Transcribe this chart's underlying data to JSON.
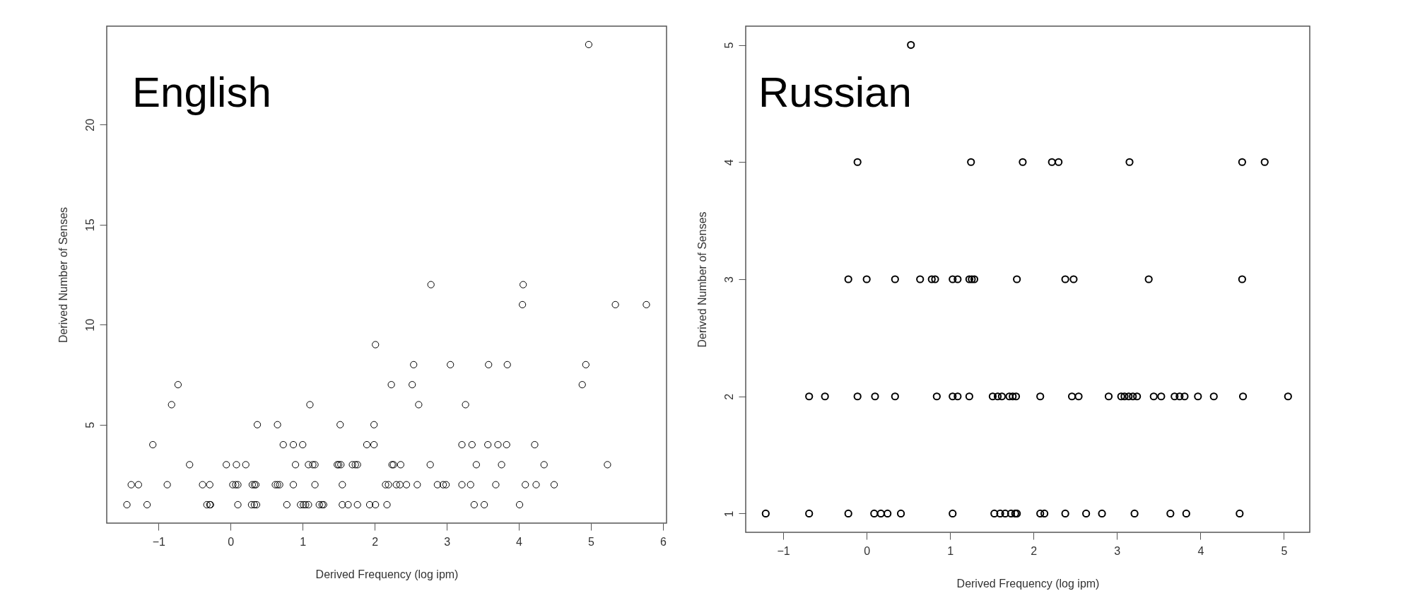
{
  "chart_data": [
    {
      "type": "scatter",
      "title": "English",
      "xlabel": "Derived Frequency (log ipm)",
      "ylabel": "Derived Number of Senses",
      "marker": "circle",
      "grid": false,
      "x": [
        -1.44,
        -1.16,
        -0.33,
        -0.29,
        -0.28,
        0.1,
        0.29,
        0.33,
        0.36,
        0.78,
        0.97,
        1.01,
        1.04,
        1.08,
        1.23,
        1.27,
        1.29,
        1.55,
        1.63,
        1.76,
        1.93,
        2.01,
        2.17,
        3.38,
        3.52,
        4.01,
        -1.38,
        -1.28,
        -0.88,
        -0.39,
        -0.29,
        0.03,
        0.07,
        0.1,
        0.3,
        0.33,
        0.35,
        0.62,
        0.65,
        0.68,
        0.87,
        1.17,
        1.55,
        2.15,
        2.19,
        2.3,
        2.35,
        2.44,
        2.59,
        2.87,
        2.95,
        2.99,
        3.21,
        3.33,
        3.68,
        4.09,
        4.24,
        4.49,
        -0.57,
        -0.06,
        0.08,
        0.21,
        0.9,
        1.08,
        1.14,
        1.17,
        1.48,
        1.5,
        1.53,
        1.69,
        1.73,
        1.76,
        2.24,
        2.26,
        2.36,
        2.77,
        3.41,
        3.76,
        4.35,
        5.23,
        -1.08,
        0.73,
        0.87,
        1.0,
        1.89,
        1.99,
        3.21,
        3.35,
        3.57,
        3.71,
        3.83,
        4.22,
        0.37,
        0.65,
        1.52,
        1.99,
        -0.82,
        1.1,
        2.61,
        3.26,
        -0.73,
        2.23,
        2.52,
        4.88,
        2.54,
        3.05,
        3.58,
        3.84,
        4.93,
        2.01,
        4.05,
        5.34,
        5.77,
        2.78,
        4.06,
        4.97
      ],
      "series": [
        {
          "color": "#000000",
          "values": [
            1,
            1,
            1,
            1,
            1,
            1,
            1,
            1,
            1,
            1,
            1,
            1,
            1,
            1,
            1,
            1,
            1,
            1,
            1,
            1,
            1,
            1,
            1,
            1,
            1,
            1,
            2,
            2,
            2,
            2,
            2,
            2,
            2,
            2,
            2,
            2,
            2,
            2,
            2,
            2,
            2,
            2,
            2,
            2,
            2,
            2,
            2,
            2,
            2,
            2,
            2,
            2,
            2,
            2,
            2,
            2,
            2,
            2,
            3,
            3,
            3,
            3,
            3,
            3,
            3,
            3,
            3,
            3,
            3,
            3,
            3,
            3,
            3,
            3,
            3,
            3,
            3,
            3,
            3,
            3,
            4,
            4,
            4,
            4,
            4,
            4,
            4,
            4,
            4,
            4,
            4,
            4,
            5,
            5,
            5,
            5,
            6,
            6,
            6,
            6,
            7,
            7,
            7,
            7,
            8,
            8,
            8,
            8,
            8,
            9,
            11,
            11,
            11,
            12,
            12,
            24
          ]
        }
      ],
      "xlim": [
        -1.72,
        6.05
      ],
      "ylim": [
        0.08,
        24.92
      ],
      "xticks": [
        -1,
        0,
        1,
        2,
        3,
        4,
        5,
        6
      ],
      "yticks": [
        5,
        10,
        15,
        20
      ]
    },
    {
      "type": "scatter",
      "title": "Russian",
      "xlabel": "Derived Frequency (log ipm)",
      "ylabel": "Derived Number of Senses",
      "marker": "circle",
      "grid": false,
      "x": [
        -1.21,
        -0.69,
        -0.22,
        0.09,
        0.17,
        0.25,
        0.41,
        1.03,
        1.53,
        1.6,
        1.66,
        1.73,
        1.78,
        1.8,
        2.08,
        2.13,
        2.38,
        2.63,
        2.82,
        3.21,
        3.64,
        3.83,
        4.47,
        -0.69,
        -0.5,
        -0.11,
        0.1,
        0.34,
        0.84,
        1.03,
        1.09,
        1.23,
        1.51,
        1.57,
        1.62,
        1.71,
        1.75,
        1.79,
        2.08,
        2.46,
        2.54,
        2.9,
        3.05,
        3.09,
        3.14,
        3.19,
        3.24,
        3.44,
        3.53,
        3.69,
        3.75,
        3.81,
        3.97,
        4.16,
        4.51,
        5.05,
        -0.22,
        0.0,
        0.34,
        0.64,
        0.78,
        0.82,
        1.03,
        1.09,
        1.23,
        1.26,
        1.29,
        1.8,
        2.38,
        2.48,
        3.38,
        4.5,
        -0.11,
        1.25,
        1.87,
        2.22,
        2.3,
        3.15,
        4.5,
        4.77,
        0.53
      ],
      "series": [
        {
          "color": "#000000",
          "values": [
            1,
            1,
            1,
            1,
            1,
            1,
            1,
            1,
            1,
            1,
            1,
            1,
            1,
            1,
            1,
            1,
            1,
            1,
            1,
            1,
            1,
            1,
            1,
            2,
            2,
            2,
            2,
            2,
            2,
            2,
            2,
            2,
            2,
            2,
            2,
            2,
            2,
            2,
            2,
            2,
            2,
            2,
            2,
            2,
            2,
            2,
            2,
            2,
            2,
            2,
            2,
            2,
            2,
            2,
            2,
            2,
            3,
            3,
            3,
            3,
            3,
            3,
            3,
            3,
            3,
            3,
            3,
            3,
            3,
            3,
            3,
            3,
            4,
            4,
            4,
            4,
            4,
            4,
            4,
            4,
            5
          ]
        }
      ],
      "xlim": [
        -1.45,
        5.31
      ],
      "ylim": [
        0.84,
        5.16
      ],
      "xticks": [
        -1,
        0,
        1,
        2,
        3,
        4,
        5
      ],
      "yticks": [
        1,
        2,
        3,
        4,
        5
      ]
    }
  ]
}
